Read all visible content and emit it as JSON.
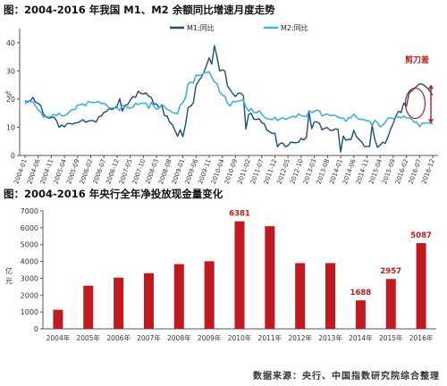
{
  "panel1": {
    "title": "图：2004-2016 年我国 M1、M2 余额同比增速月度走势",
    "unit_label": "%",
    "annotation": "剪刀差"
  },
  "panel2": {
    "title": "图：2004-2016 年央行全年净投放现金量变化",
    "unit_label": "亿元"
  },
  "source": "数据来源：央行、中国指数研究院综合整理",
  "colors": {
    "m1": "#1b4f6e",
    "m2": "#3fb0e0",
    "bar": "#c0191f",
    "bar_label": "#c0191f",
    "annotation": "#c0191f"
  },
  "chart_data": [
    {
      "type": "line",
      "title": "2004-2016 年我国 M1、M2 余额同比增速月度走势",
      "ylabel": "%",
      "ylim": [
        0,
        45
      ],
      "yticks": [
        0,
        10,
        20,
        30,
        40
      ],
      "grid": false,
      "legend_position": "top",
      "x_ticks": [
        "2004-01",
        "2004-06",
        "2004-11",
        "2005-04",
        "2005-09",
        "2006-02",
        "2006-07",
        "2006-12",
        "2007-05",
        "2007-10",
        "2008-03",
        "2008-08",
        "2009-01",
        "2009-06",
        "2009-11",
        "2010-04",
        "2010-09",
        "2011-02",
        "2011-07",
        "2011-12",
        "2012-05",
        "2012-10",
        "2013-03",
        "2013-08",
        "2014-01",
        "2014-06",
        "2014-11",
        "2015-04",
        "2015-09",
        "2016-02",
        "2016-07",
        "2016-12"
      ],
      "series": [
        {
          "name": "M1:同比",
          "values": [
            19.4,
            18.9,
            19.4,
            20.6,
            18.9,
            18.5,
            17.6,
            14.6,
            13.7,
            13.2,
            13.4,
            13.6,
            12.3,
            10.0,
            10.8,
            10.1,
            11.3,
            11.3,
            11.1,
            11.5,
            11.6,
            12.1,
            12.7,
            11.8,
            12.2,
            12.4,
            12.4,
            11.8,
            13.7,
            14.0,
            15.3,
            15.6,
            16.7,
            16.3,
            16.8,
            17.5,
            20.2,
            15.7,
            17.8,
            18.0,
            19.6,
            20.9,
            20.6,
            22.8,
            22.1,
            21.8,
            22.2,
            21.0,
            20.6,
            18.2,
            18.3,
            16.9,
            17.9,
            14.2,
            14.0,
            11.8,
            11.0,
            8.9,
            6.8,
            9.1,
            6.7,
            10.9,
            17.0,
            17.5,
            18.7,
            24.8,
            26.4,
            27.7,
            29.5,
            32.0,
            34.6,
            32.4,
            38.9,
            34.9,
            29.9,
            30.4,
            29.9,
            24.6,
            23.3,
            21.9,
            20.9,
            22.1,
            22.1,
            21.2,
            9.4,
            14.5,
            15.0,
            12.9,
            12.7,
            13.1,
            11.6,
            11.2,
            8.9,
            8.4,
            7.8,
            7.9,
            3.1,
            4.3,
            4.4,
            3.1,
            3.5,
            4.7,
            4.6,
            4.5,
            4.7,
            6.1,
            5.5,
            6.5,
            15.3,
            9.5,
            11.9,
            11.9,
            11.3,
            9.1,
            9.7,
            9.9,
            8.9,
            8.9,
            9.4,
            9.3,
            1.2,
            6.9,
            5.4,
            5.7,
            5.7,
            8.9,
            6.7,
            5.7,
            4.8,
            3.2,
            3.2,
            3.2,
            10.6,
            5.6,
            2.9,
            3.7,
            4.7,
            4.3,
            6.6,
            9.3,
            11.4,
            14.0,
            15.7,
            15.2,
            18.6,
            17.4,
            22.1,
            22.9,
            23.7,
            24.6,
            25.4,
            25.3,
            24.7,
            23.9,
            22.7,
            21.4
          ]
        },
        {
          "name": "M2:同比",
          "values": [
            18.2,
            19.4,
            19.1,
            19.1,
            17.5,
            16.2,
            15.3,
            13.6,
            13.9,
            13.5,
            14.0,
            14.6,
            14.1,
            15.0,
            14.0,
            14.1,
            14.6,
            15.7,
            16.3,
            16.3,
            17.9,
            18.0,
            18.3,
            17.6,
            19.2,
            18.8,
            18.8,
            18.9,
            19.1,
            18.4,
            18.5,
            17.9,
            16.8,
            16.9,
            16.8,
            16.9,
            15.9,
            17.8,
            17.3,
            17.1,
            16.7,
            17.1,
            18.5,
            18.1,
            18.5,
            18.5,
            18.5,
            16.7,
            18.9,
            17.5,
            16.3,
            16.9,
            18.1,
            17.4,
            16.3,
            16.0,
            15.3,
            15.0,
            14.8,
            17.8,
            18.8,
            20.5,
            25.5,
            26.0,
            25.7,
            28.5,
            28.4,
            28.5,
            29.3,
            29.4,
            29.7,
            27.7,
            26.1,
            25.5,
            22.5,
            21.5,
            21.0,
            18.5,
            17.6,
            19.2,
            19.0,
            19.3,
            19.5,
            19.7,
            17.2,
            15.7,
            16.6,
            15.3,
            15.1,
            15.9,
            14.7,
            13.6,
            13.0,
            12.9,
            12.7,
            13.6,
            12.4,
            13.0,
            13.4,
            12.8,
            13.2,
            13.6,
            13.9,
            13.5,
            14.8,
            14.1,
            13.9,
            13.8,
            15.9,
            15.2,
            15.7,
            16.1,
            15.8,
            14.0,
            14.5,
            14.7,
            14.2,
            14.3,
            14.2,
            13.6,
            13.2,
            13.3,
            12.1,
            13.4,
            13.4,
            14.7,
            13.5,
            12.8,
            12.9,
            12.6,
            12.3,
            12.2,
            10.8,
            12.5,
            11.6,
            10.1,
            10.8,
            11.8,
            13.3,
            13.3,
            13.1,
            13.5,
            13.7,
            13.3,
            14.0,
            13.3,
            13.4,
            12.8,
            11.8,
            11.8,
            10.2,
            11.4,
            11.5,
            11.6,
            11.4,
            11.3
          ]
        }
      ],
      "annotations": [
        "剪刀差"
      ]
    },
    {
      "type": "bar",
      "title": "2004-2016 年央行全年净投放现金量变化",
      "ylabel": "亿元",
      "ylim": [
        0,
        7000
      ],
      "yticks": [
        0,
        1000,
        2000,
        3000,
        4000,
        5000,
        6000,
        7000
      ],
      "grid": false,
      "categories": [
        "2004年",
        "2005年",
        "2006年",
        "2007年",
        "2008年",
        "2009年",
        "2010年",
        "2011年",
        "2012年",
        "2013年",
        "2014年",
        "2015年",
        "2016年"
      ],
      "values": [
        1130,
        2560,
        3040,
        3300,
        3840,
        4010,
        6381,
        6090,
        3900,
        3900,
        1688,
        2957,
        5087
      ],
      "data_labels": [
        {
          "index": 6,
          "text": "6381"
        },
        {
          "index": 10,
          "text": "1688"
        },
        {
          "index": 11,
          "text": "2957"
        },
        {
          "index": 12,
          "text": "5087"
        }
      ]
    }
  ]
}
